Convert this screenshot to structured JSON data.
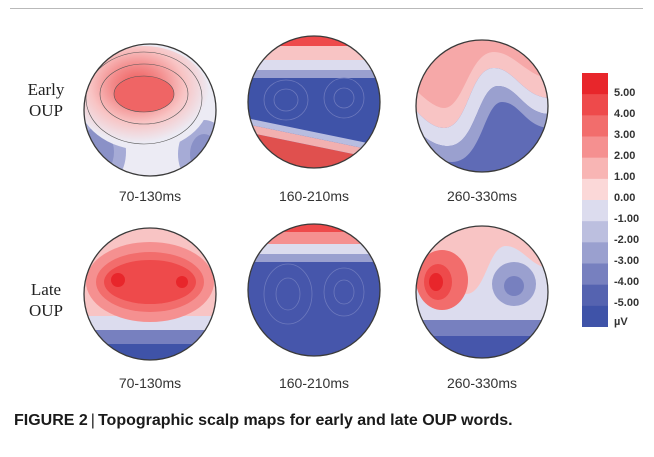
{
  "figure": {
    "caption_number": "FIGURE 2",
    "caption_separator": "|",
    "caption_text": "Topographic scalp maps for early and late OUP words."
  },
  "rows": [
    {
      "label_line1": "Early",
      "label_line2": "OUP",
      "maps": [
        {
          "time": "70-130ms"
        },
        {
          "time": "160-210ms"
        },
        {
          "time": "260-330ms"
        }
      ]
    },
    {
      "label_line1": "Late",
      "label_line2": "OUP",
      "maps": [
        {
          "time": "70-130ms"
        },
        {
          "time": "160-210ms"
        },
        {
          "time": "260-330ms"
        }
      ]
    }
  ],
  "colorbar": {
    "ticks": [
      "5.00",
      "4.00",
      "3.00",
      "2.00",
      "1.00",
      "0.00",
      "-1.00",
      "-2.00",
      "-3.00",
      "-4.00",
      "-5.00"
    ],
    "unit": "µV",
    "colors": [
      "#e8262b",
      "#ee4a4b",
      "#f26d6c",
      "#f59090",
      "#f8b5b4",
      "#fbd8d8",
      "#dcdcee",
      "#bcbfdf",
      "#9aa0cf",
      "#7780bf",
      "#5563b0",
      "#3f53a8"
    ]
  },
  "palette": {
    "positive_strong": "#e8262b",
    "neutral": "#ecebf4",
    "negative_strong": "#3f53a8",
    "outline": "#3a3a3a"
  }
}
